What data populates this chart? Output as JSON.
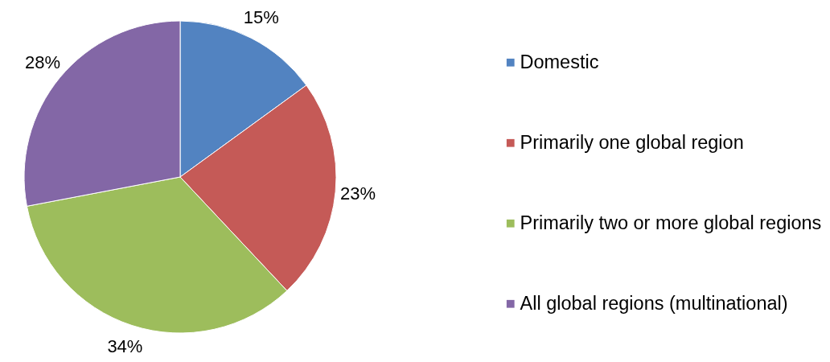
{
  "chart_data": {
    "type": "pie",
    "categories": [
      "Domestic",
      "Primarily one global region",
      "Primarily two or more global regions",
      "All global regions (multinational)"
    ],
    "values": [
      15,
      23,
      34,
      28
    ],
    "colors": [
      "#5283c1",
      "#c55a57",
      "#9dbd5c",
      "#8367a6"
    ],
    "value_labels": [
      "15%",
      "23%",
      "34%",
      "28%"
    ],
    "legend": "right"
  }
}
